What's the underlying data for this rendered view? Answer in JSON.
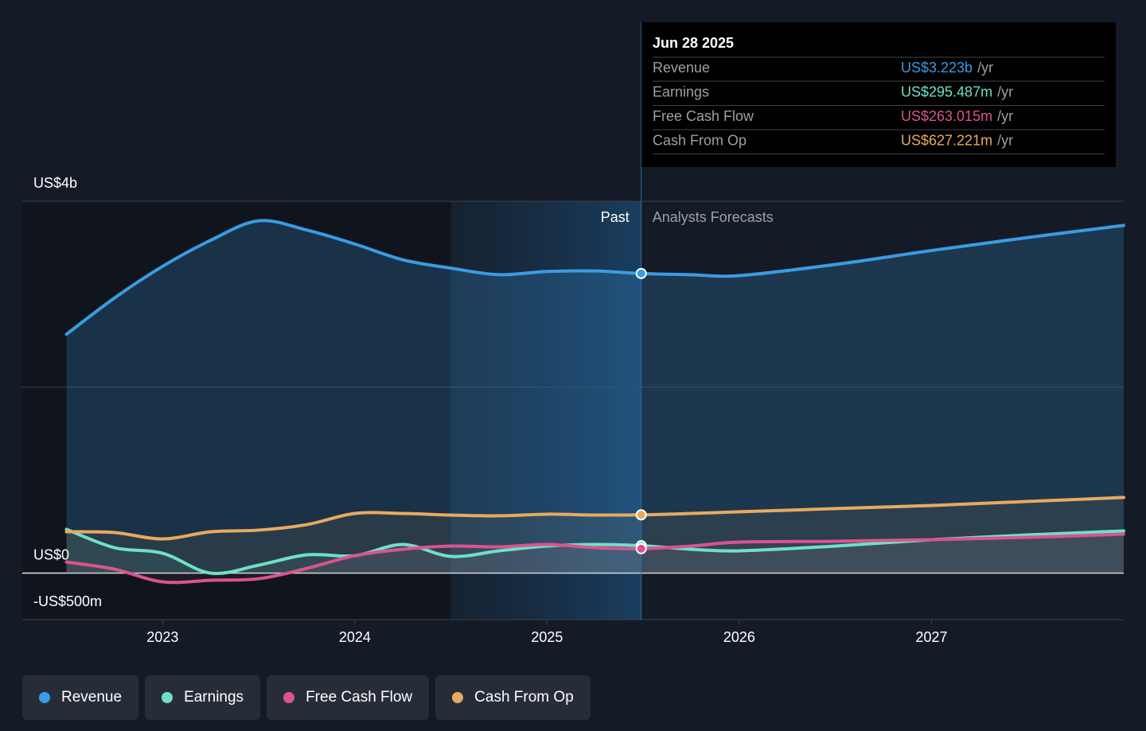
{
  "chart_data": {
    "type": "line",
    "x": [
      2022.5,
      2022.75,
      2023,
      2023.25,
      2023.5,
      2023.75,
      2024,
      2024.25,
      2024.5,
      2024.75,
      2025,
      2025.25,
      2025.49,
      2025.75,
      2026,
      2026.5,
      2027,
      2027.5,
      2028
    ],
    "series": [
      {
        "name": "Revenue",
        "color": "#3a9be3",
        "area": true,
        "values": [
          2570,
          2960,
          3300,
          3580,
          3790,
          3690,
          3540,
          3370,
          3280,
          3210,
          3245,
          3250,
          3223,
          3210,
          3200,
          3320,
          3470,
          3610,
          3740
        ]
      },
      {
        "name": "Earnings",
        "color": "#6fe0c8",
        "area": true,
        "values": [
          471,
          274,
          214,
          0,
          86,
          197,
          188,
          308,
          180,
          240,
          291,
          308,
          295.487,
          257,
          240,
          291,
          360,
          411,
          454
        ]
      },
      {
        "name": "Free Cash Flow",
        "color": "#d9548f",
        "area": true,
        "values": [
          120,
          43,
          -94,
          -77,
          -60,
          51,
          188,
          257,
          291,
          283,
          308,
          274,
          263.015,
          291,
          334,
          343,
          360,
          385,
          420
        ]
      },
      {
        "name": "Cash From Op",
        "color": "#e8aa5e",
        "area": true,
        "values": [
          445,
          437,
          368,
          445,
          463,
          522,
          642,
          642,
          625,
          617,
          634,
          625,
          627.221,
          642,
          660,
          694,
          728,
          771,
          814
        ]
      }
    ],
    "xlim": [
      2022.27,
      2028
    ],
    "xticks": [
      2023,
      2024,
      2025,
      2026,
      2027
    ],
    "ylim": [
      -500,
      4000
    ],
    "yticks": [
      {
        "value": 4000,
        "label": "US$4b"
      },
      {
        "value": 2000,
        "label": null
      },
      {
        "value": 0,
        "label": "US$0"
      },
      {
        "value": -500,
        "label": "-US$500m"
      }
    ],
    "grid": true,
    "highlight": [
      2024.5,
      2025.49
    ],
    "annotations": {
      "past": "Past",
      "forecast": "Analysts Forecasts"
    },
    "tooltip": {
      "index": 12,
      "date": "Jun 28 2025",
      "labels": [
        "US$3.223b",
        "US$295.487m",
        "US$263.015m",
        "US$627.221m"
      ],
      "unit": "/yr"
    }
  }
}
